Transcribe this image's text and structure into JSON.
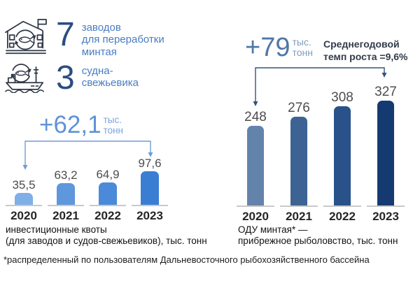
{
  "stats": [
    {
      "icon": "factory-icon",
      "value": "7",
      "label": "заводов\nдля переработки\nминтая"
    },
    {
      "icon": "vessel-icon",
      "value": "3",
      "label": "судна-\nсвежьевика"
    }
  ],
  "footnote": "*распределенный по пользователям Дальневосточного рыбохозяйственного бассейна",
  "colors": {
    "accent_light_blue": "#5f93d6",
    "accent_steel_blue": "#4f77a8",
    "bracket_left": "#6e9cd8",
    "bracket_right": "#35517f",
    "big_number": "#2d4d80",
    "stat_label": "#4a7cc2",
    "icon_stroke": "#2e3744",
    "axis_baseline": "#c9c9c9"
  },
  "chart_data": [
    {
      "type": "bar",
      "title": "инвестиционные квоты (для заводов и судов-свежьевиков), тыс. тонн",
      "caption": "инвестиционные квоты\n(для заводов и судов-свежьевиков), тыс. тонн",
      "categories": [
        "2020",
        "2021",
        "2022",
        "2023"
      ],
      "values": [
        35.5,
        63.2,
        64.9,
        97.6
      ],
      "value_labels": [
        "35,5",
        "63,2",
        "64,9",
        "97,6"
      ],
      "bar_colors": [
        "#7eafe6",
        "#5e97dc",
        "#4b8ad8",
        "#3a7ed4"
      ],
      "ylabel": "тыс. тонн",
      "ylim": [
        0,
        110
      ],
      "grid": false,
      "annotation": {
        "value": "+62,1",
        "unit_top": "тыс.",
        "unit_bottom": "тонн"
      }
    },
    {
      "type": "bar",
      "title": "ОДУ минтая* — прибрежное рыболовство, тыс. тонн",
      "caption": "ОДУ минтая* —\nприбрежное рыболовство, тыс. тонн",
      "categories": [
        "2020",
        "2021",
        "2022",
        "2023"
      ],
      "values": [
        248,
        276,
        308,
        327
      ],
      "value_labels": [
        "248",
        "276",
        "308",
        "327"
      ],
      "bar_colors": [
        "#6383ab",
        "#3d6394",
        "#29528a",
        "#153a72"
      ],
      "ylabel": "тыс. тонн",
      "ylim": [
        0,
        360
      ],
      "grid": false,
      "annotation": {
        "value": "+79",
        "unit_top": "тыс.",
        "unit_bottom": "тонн"
      },
      "growth_note": "Среднегодовой\nтемп роста =9,6%"
    }
  ]
}
